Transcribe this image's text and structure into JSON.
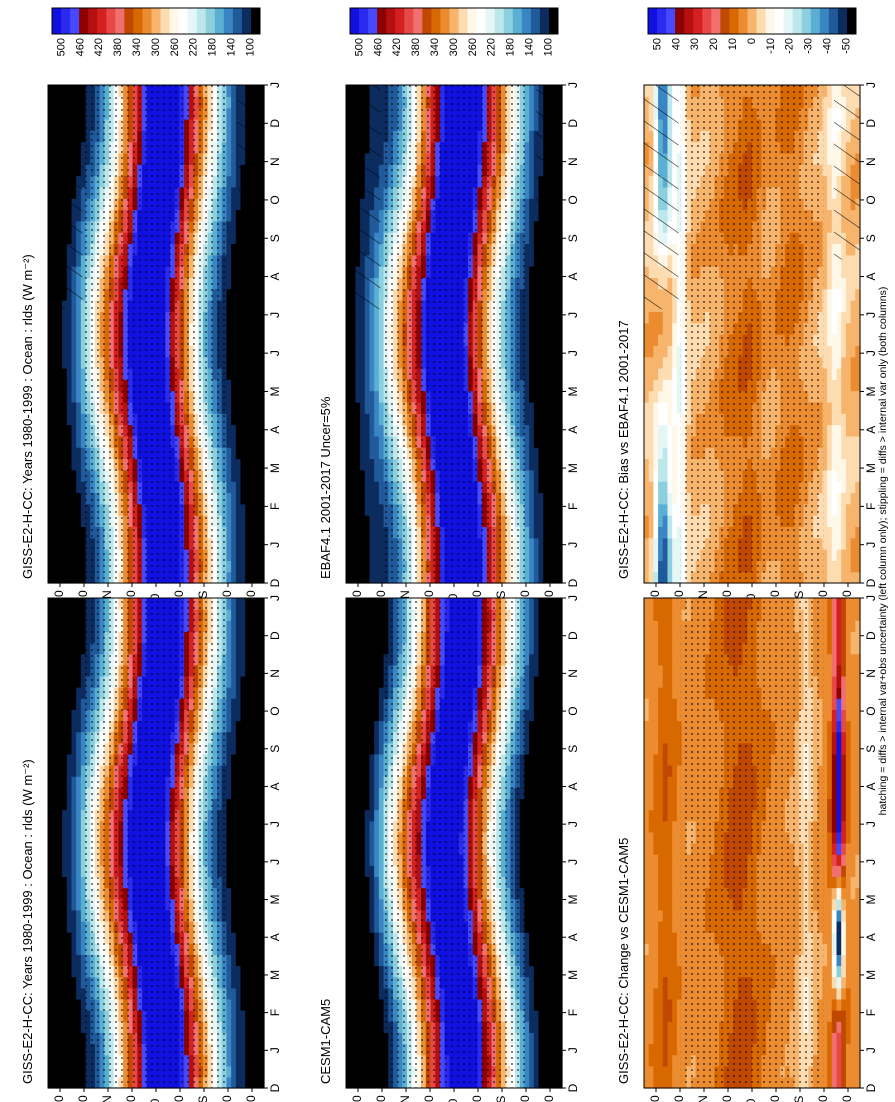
{
  "footer": "hatching = diffs > internal var+obs uncertainty (left column only); stippling = diffs > internal var only (both columns)",
  "months": [
    "D",
    "J",
    "F",
    "M",
    "A",
    "M",
    "J",
    "J",
    "A",
    "S",
    "O",
    "N",
    "D",
    "J"
  ],
  "lat_ticks": [
    "80",
    "60",
    "°N",
    "20",
    "0",
    "20",
    "°S",
    "60",
    "80"
  ],
  "units_note": "(W m⁻²)",
  "scales": {
    "absolute": {
      "levels": [
        "500",
        "460",
        "420",
        "380",
        "340",
        "300",
        "260",
        "220",
        "180",
        "140",
        "100"
      ],
      "colors": [
        "#1010e0",
        "#2a2af0",
        "#4848ff",
        "#8c0000",
        "#b41010",
        "#d42020",
        "#e84848",
        "#f07070",
        "#c04800",
        "#d86800",
        "#ec8c30",
        "#f6b46c",
        "#fcdcb0",
        "#fff8e8",
        "#ffffff",
        "#e4f6f6",
        "#bce8ec",
        "#8ccfdf",
        "#5ab0d2",
        "#3a86c4",
        "#205a9a",
        "#0c2c60",
        "#000000"
      ]
    },
    "difference": {
      "levels": [
        "50",
        "40",
        "30",
        "20",
        "10",
        "0",
        "-10",
        "-20",
        "-30",
        "-40",
        "-50"
      ],
      "colors": [
        "#1010e0",
        "#2a2af0",
        "#4848ff",
        "#8c0000",
        "#b41010",
        "#d42020",
        "#e84848",
        "#f07070",
        "#c04800",
        "#d86800",
        "#ec8c30",
        "#f6b46c",
        "#fcdcb0",
        "#fff8e8",
        "#ffffff",
        "#e4f6f6",
        "#bce8ec",
        "#8ccfdf",
        "#5ab0d2",
        "#3a86c4",
        "#205a9a",
        "#0c2c60",
        "#000000"
      ]
    }
  },
  "chart_data": [
    {
      "type": "heatmap",
      "title": "GISS-E2-H-CC: Years 1980-1999 : Ocean : rlds (W m⁻²)",
      "xlabel": "",
      "ylabel": "",
      "scale": "absolute",
      "field": "absolute",
      "variant": 0,
      "hatching": true,
      "stippling": true
    },
    {
      "type": "heatmap",
      "title": "GISS-E2-H-CC: Years 1980-1999 : Ocean : rlds (W m⁻²)",
      "xlabel": "",
      "ylabel": "",
      "scale": "absolute",
      "field": "absolute",
      "variant": 0,
      "hatching": false,
      "stippling": true
    },
    {
      "type": "heatmap",
      "title": "EBAF4.1 2001-2017 Uncer=5%",
      "xlabel": "",
      "ylabel": "",
      "scale": "absolute",
      "field": "absolute",
      "variant": 1,
      "hatching": true,
      "stippling": true
    },
    {
      "type": "heatmap",
      "title": "CESM1-CAM5",
      "xlabel": "",
      "ylabel": "",
      "scale": "absolute",
      "field": "absolute",
      "variant": 2,
      "hatching": false,
      "stippling": true
    },
    {
      "type": "heatmap",
      "title": "GISS-E2-H-CC: Bias vs EBAF4.1 2001-2017",
      "xlabel": "",
      "ylabel": "",
      "scale": "difference",
      "field": "bias",
      "hatching": true,
      "stippling": true
    },
    {
      "type": "heatmap",
      "title": "GISS-E2-H-CC: Change vs CESM1-CAM5",
      "xlabel": "",
      "ylabel": "",
      "scale": "difference",
      "field": "change",
      "hatching": false,
      "stippling": true
    }
  ]
}
